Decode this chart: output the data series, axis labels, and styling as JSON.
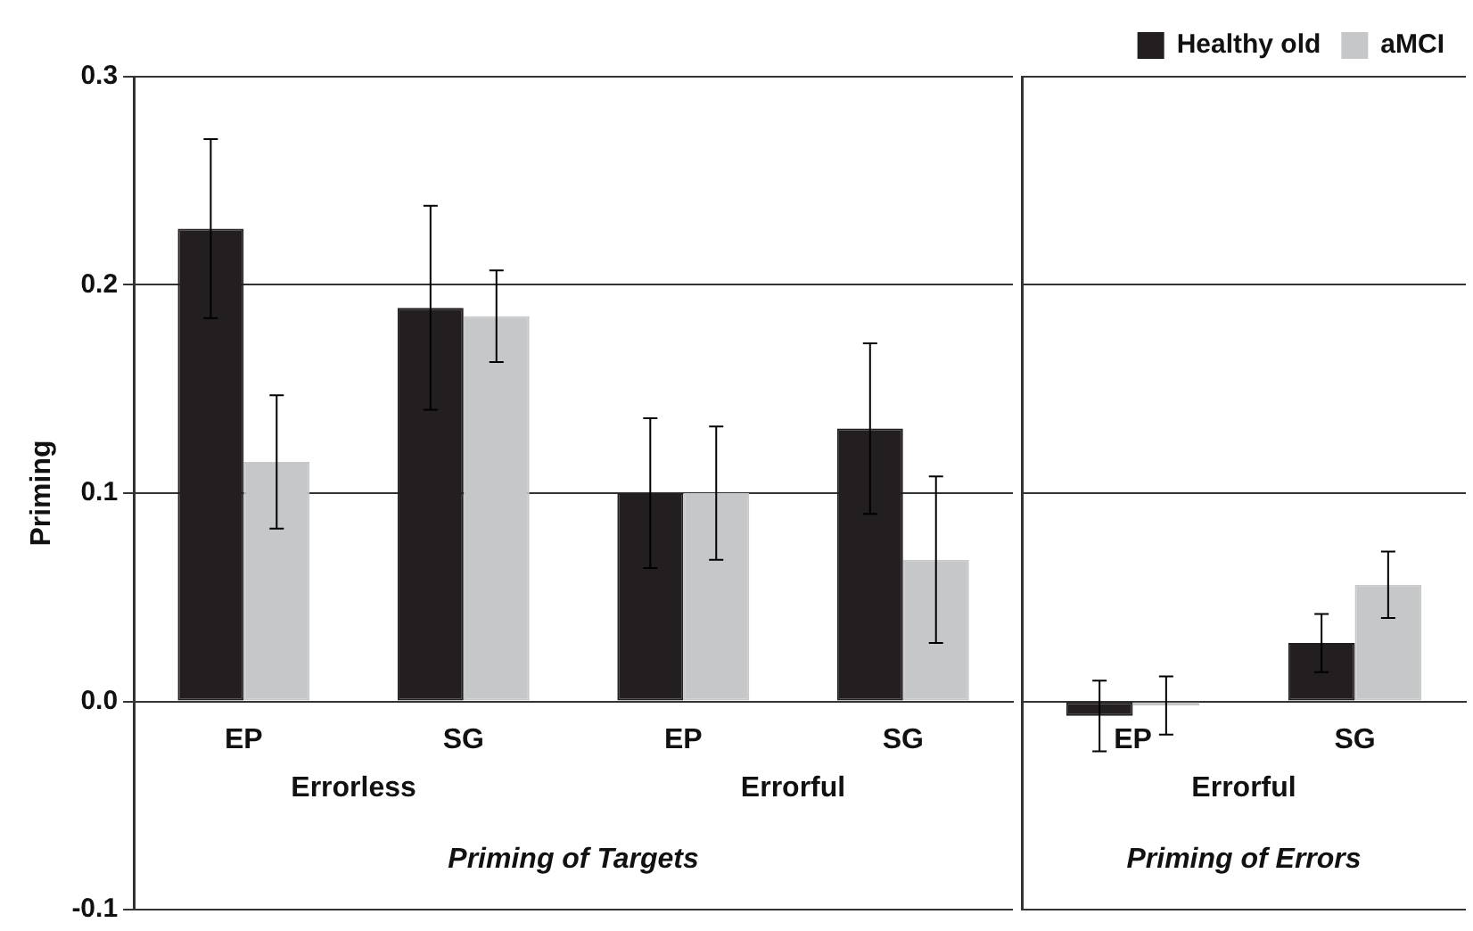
{
  "chart_data": [
    {
      "type": "bar",
      "ylabel": "Priming",
      "categories": [
        "EP",
        "SG",
        "EP",
        "SG"
      ],
      "series": [
        {
          "color": "#231f20",
          "values": [
            0.227,
            0.189,
            0.1,
            0.131
          ],
          "errors": [
            0.043,
            0.049,
            0.036,
            0.041
          ]
        },
        {
          "color": "#c6c7c9",
          "values": [
            0.115,
            0.185,
            0.1,
            0.068
          ],
          "errors": [
            0.032,
            0.022,
            0.032,
            0.04
          ]
        }
      ],
      "ylim": [
        -0.1,
        0.3
      ],
      "yticks": [
        -0.1,
        {
          "value": 0,
          "label": "0.0"
        },
        0.1,
        0.2,
        0.3
      ],
      "grid": "y",
      "annotations": [
        "Errorless",
        "Errorful",
        "Priming of Targets"
      ]
    },
    {
      "type": "bar",
      "categories": [
        "EP",
        "SG"
      ],
      "series": [
        {
          "name": "Healthy old",
          "color": "#231f20",
          "values": [
            -0.007,
            0.028
          ],
          "errors": [
            0.017,
            0.014
          ]
        },
        {
          "name": "aMCI",
          "color": "#c6c7c9",
          "values": [
            -0.002,
            0.056
          ],
          "errors": [
            0.014,
            0.016
          ]
        }
      ],
      "ylim": [
        -0.1,
        0.3
      ],
      "yticks": [
        -0.1,
        0,
        0.1,
        0.2,
        0.3
      ],
      "grid": "y",
      "legend": "top right",
      "tick_labels": "x",
      "annotations": [
        "Errorful",
        "Priming of Errors"
      ]
    }
  ]
}
